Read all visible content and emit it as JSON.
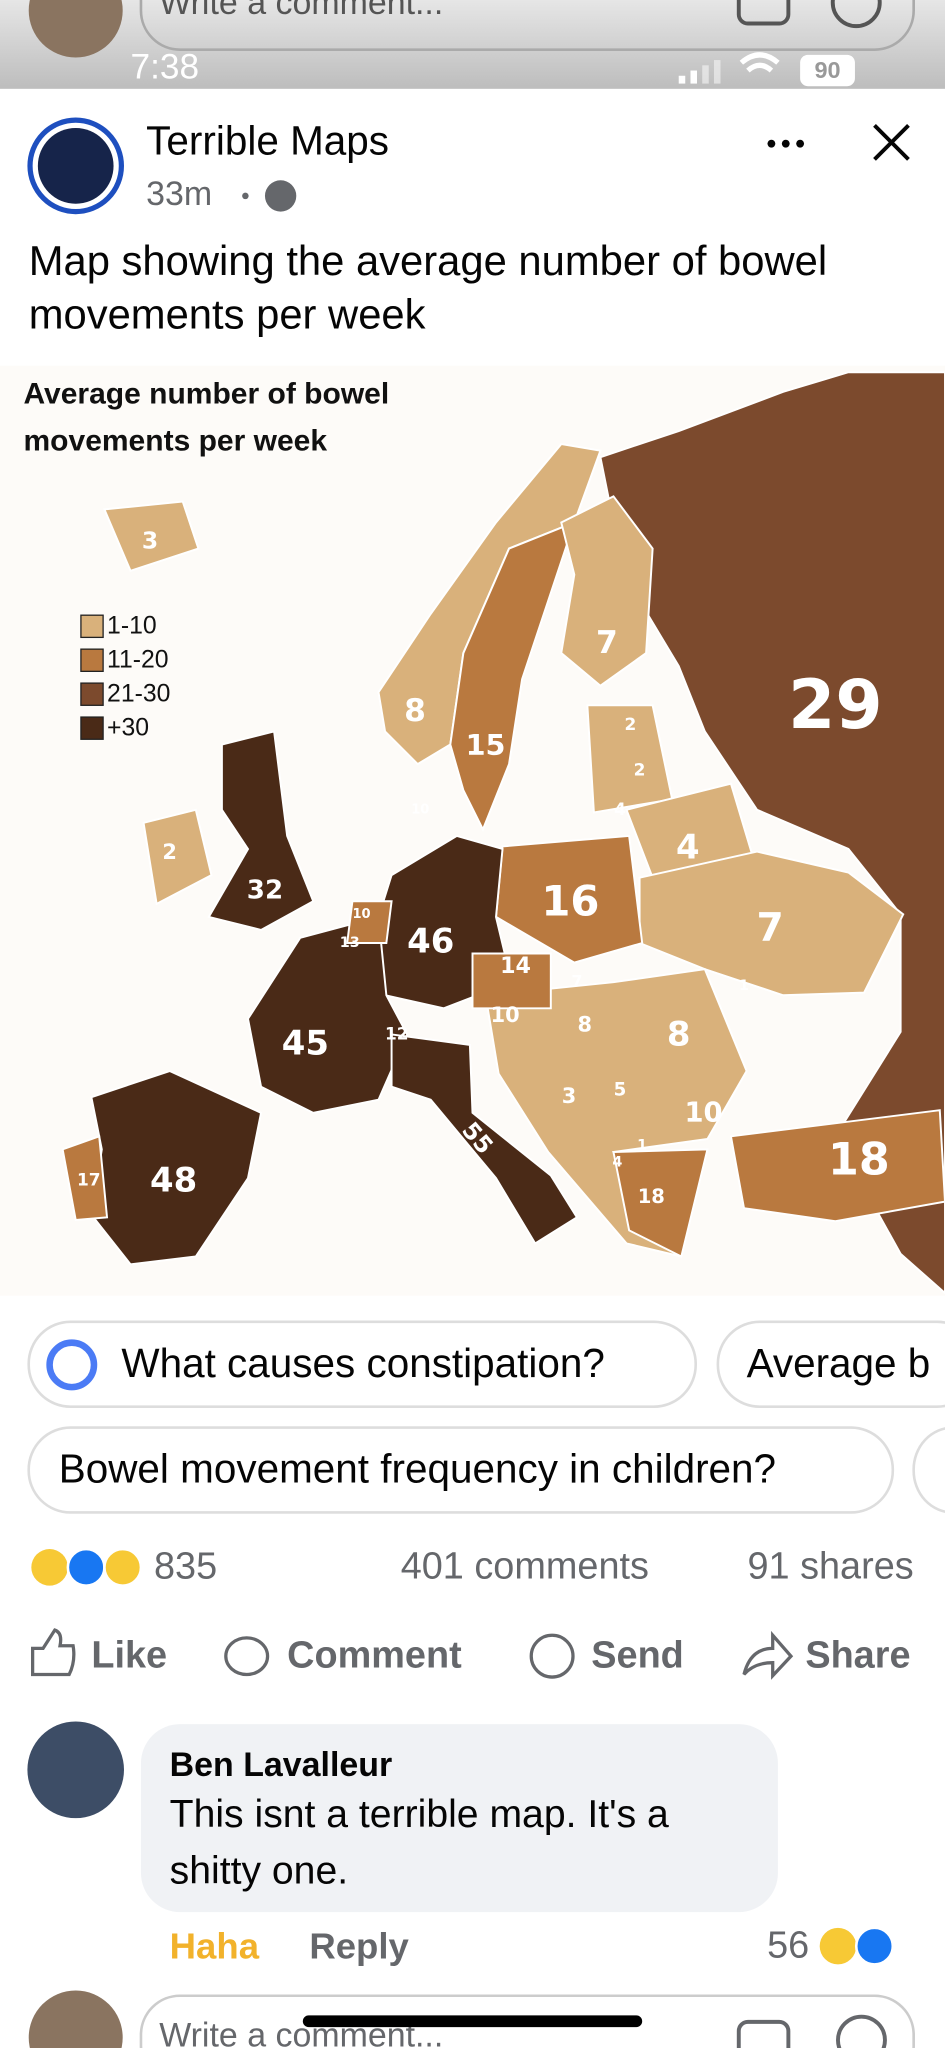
{
  "top_bar": {
    "comment_placeholder": "Write a comment...",
    "time": "7:38",
    "battery": 90
  },
  "post": {
    "author": "Terrible Maps",
    "time": "33m",
    "text": [
      "Map showing the average number of bowel",
      "movements per week"
    ]
  },
  "map": {
    "title": [
      "Average number of bowel",
      "movements per week"
    ],
    "legend": [
      {
        "label": "1-10",
        "color": "#d9b17b"
      },
      {
        "label": "11-20",
        "color": "#b9793f"
      },
      {
        "label": "21-30",
        "color": "#7c4a2d"
      },
      {
        "label": "+30",
        "color": "#4a2a17"
      }
    ],
    "labels": [
      3,
      8,
      15,
      7,
      29,
      2,
      2,
      4,
      4,
      2,
      32,
      16,
      7,
      46,
      14,
      10,
      13,
      10,
      10,
      45,
      12,
      7,
      8,
      8,
      3,
      5,
      10,
      55,
      1,
      4,
      18,
      48,
      17,
      18,
      1
    ]
  },
  "suggestions": [
    "What causes constipation?",
    "Average b",
    "Bowel movement frequency in children?"
  ],
  "engagement": {
    "reactions": 835,
    "comments": "401 comments",
    "shares": "91 shares"
  },
  "actions": [
    "Like",
    "Comment",
    "Send",
    "Share"
  ],
  "comment": {
    "author": "Ben Lavalleur",
    "text": [
      "This isnt a terrible map. It's a",
      "shitty one."
    ],
    "actions": [
      "Haha",
      "Reply"
    ],
    "reactions": 56
  },
  "composer": {
    "placeholder": "Write a comment..."
  }
}
